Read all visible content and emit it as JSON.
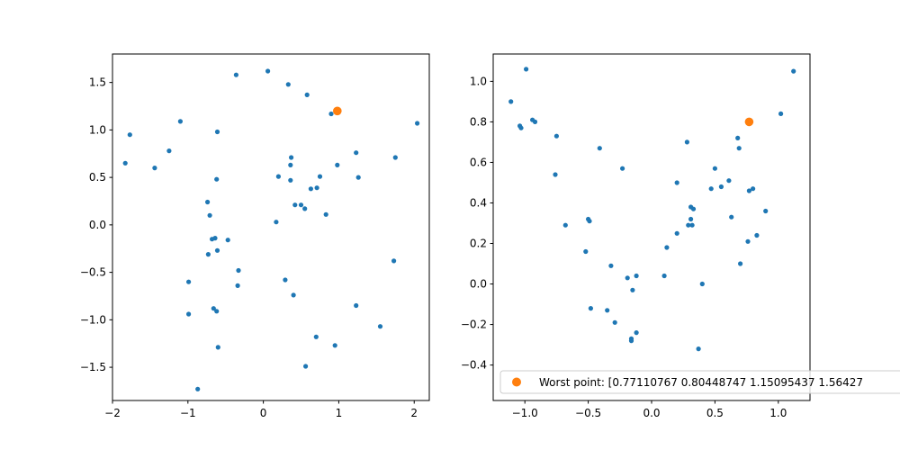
{
  "chart_data": [
    {
      "type": "scatter",
      "xlim": [
        -2.0,
        2.2
      ],
      "ylim": [
        -1.85,
        1.8
      ],
      "xticks": [
        -2,
        -1,
        0,
        1,
        2
      ],
      "xtick_labels": [
        "−2",
        "−1",
        "0",
        "1",
        "2"
      ],
      "yticks": [
        -1.5,
        -1.0,
        -0.5,
        0.0,
        0.5,
        1.0,
        1.5
      ],
      "ytick_labels": [
        "−1.5",
        "−1.0",
        "−0.5",
        "0.0",
        "0.5",
        "1.0",
        "1.5"
      ],
      "series": [
        {
          "color": "#1f77b4",
          "points": [
            [
              -1.83,
              0.65
            ],
            [
              -1.77,
              0.95
            ],
            [
              -1.44,
              0.6
            ],
            [
              -1.25,
              0.78
            ],
            [
              -1.1,
              1.09
            ],
            [
              -0.61,
              0.98
            ],
            [
              -0.36,
              1.58
            ],
            [
              0.06,
              1.62
            ],
            [
              0.33,
              1.48
            ],
            [
              0.58,
              1.37
            ],
            [
              -0.62,
              0.48
            ],
            [
              -0.74,
              0.24
            ],
            [
              -0.71,
              0.1
            ],
            [
              -0.68,
              -0.15
            ],
            [
              -0.64,
              -0.14
            ],
            [
              -0.47,
              -0.16
            ],
            [
              -0.61,
              -0.27
            ],
            [
              -0.73,
              -0.31
            ],
            [
              -0.33,
              -0.48
            ],
            [
              -0.99,
              -0.6
            ],
            [
              -0.34,
              -0.64
            ],
            [
              -0.99,
              -0.94
            ],
            [
              -0.66,
              -0.88
            ],
            [
              -0.62,
              -0.91
            ],
            [
              -0.6,
              -1.29
            ],
            [
              -0.87,
              -1.73
            ],
            [
              0.37,
              0.71
            ],
            [
              0.36,
              0.63
            ],
            [
              0.2,
              0.51
            ],
            [
              0.36,
              0.47
            ],
            [
              0.17,
              0.03
            ],
            [
              0.42,
              0.21
            ],
            [
              0.5,
              0.21
            ],
            [
              0.55,
              0.17
            ],
            [
              0.63,
              0.38
            ],
            [
              0.71,
              0.39
            ],
            [
              0.75,
              0.51
            ],
            [
              0.83,
              0.11
            ],
            [
              0.9,
              1.17
            ],
            [
              0.98,
              0.63
            ],
            [
              1.23,
              0.76
            ],
            [
              1.26,
              0.5
            ],
            [
              1.75,
              0.71
            ],
            [
              2.04,
              1.07
            ],
            [
              0.29,
              -0.58
            ],
            [
              0.4,
              -0.74
            ],
            [
              1.23,
              -0.85
            ],
            [
              1.73,
              -0.38
            ],
            [
              1.55,
              -1.07
            ],
            [
              0.7,
              -1.18
            ],
            [
              0.95,
              -1.27
            ],
            [
              0.56,
              -1.49
            ]
          ]
        },
        {
          "color": "#ff7f0e",
          "points": [
            [
              0.98,
              1.2
            ]
          ]
        }
      ]
    },
    {
      "type": "scatter",
      "xlim": [
        -1.25,
        1.25
      ],
      "ylim": [
        -0.575,
        1.135
      ],
      "xticks": [
        -1.0,
        -0.5,
        0.0,
        0.5,
        1.0
      ],
      "xtick_labels": [
        "−1.0",
        "−0.5",
        "0.0",
        "0.5",
        "1.0"
      ],
      "yticks": [
        -0.4,
        -0.2,
        0.0,
        0.2,
        0.4,
        0.6,
        0.8,
        1.0
      ],
      "ytick_labels": [
        "−0.4",
        "−0.2",
        "0.0",
        "0.2",
        "0.4",
        "0.6",
        "0.8",
        "1.0"
      ],
      "series": [
        {
          "color": "#1f77b4",
          "points": [
            [
              -1.11,
              0.9
            ],
            [
              -1.04,
              0.78
            ],
            [
              -1.03,
              0.77
            ],
            [
              -0.99,
              1.06
            ],
            [
              -0.94,
              0.81
            ],
            [
              -0.92,
              0.8
            ],
            [
              -0.75,
              0.73
            ],
            [
              -0.76,
              0.54
            ],
            [
              -0.68,
              0.29
            ],
            [
              -0.41,
              0.67
            ],
            [
              -0.52,
              0.16
            ],
            [
              -0.5,
              0.32
            ],
            [
              -0.49,
              0.31
            ],
            [
              -0.48,
              -0.12
            ],
            [
              -0.35,
              -0.13
            ],
            [
              -0.32,
              0.09
            ],
            [
              -0.29,
              -0.19
            ],
            [
              -0.23,
              0.57
            ],
            [
              -0.19,
              0.03
            ],
            [
              -0.16,
              -0.27
            ],
            [
              -0.16,
              -0.28
            ],
            [
              -0.15,
              -0.03
            ],
            [
              -0.12,
              0.04
            ],
            [
              -0.12,
              -0.24
            ],
            [
              0.1,
              0.04
            ],
            [
              0.12,
              0.18
            ],
            [
              0.2,
              0.5
            ],
            [
              0.2,
              0.25
            ],
            [
              0.28,
              0.7
            ],
            [
              0.29,
              0.29
            ],
            [
              0.31,
              0.38
            ],
            [
              0.31,
              0.32
            ],
            [
              0.32,
              0.29
            ],
            [
              0.33,
              0.37
            ],
            [
              0.37,
              -0.32
            ],
            [
              0.4,
              0.0
            ],
            [
              0.47,
              0.47
            ],
            [
              0.5,
              0.57
            ],
            [
              0.55,
              0.48
            ],
            [
              0.61,
              0.51
            ],
            [
              0.63,
              0.33
            ],
            [
              0.68,
              0.72
            ],
            [
              0.69,
              0.67
            ],
            [
              0.7,
              0.1
            ],
            [
              0.76,
              0.21
            ],
            [
              0.77,
              0.46
            ],
            [
              0.8,
              0.47
            ],
            [
              0.83,
              0.24
            ],
            [
              0.9,
              0.36
            ],
            [
              1.02,
              0.84
            ],
            [
              1.12,
              1.05
            ]
          ]
        },
        {
          "color": "#ff7f0e",
          "points": [
            [
              0.77,
              0.8
            ]
          ]
        }
      ],
      "legend": {
        "placement": "lower-left",
        "entries": [
          {
            "label": "Worst point: [0.77110767 0.80448747 1.15095437 1.56427",
            "color": "#ff7f0e"
          }
        ]
      }
    }
  ]
}
